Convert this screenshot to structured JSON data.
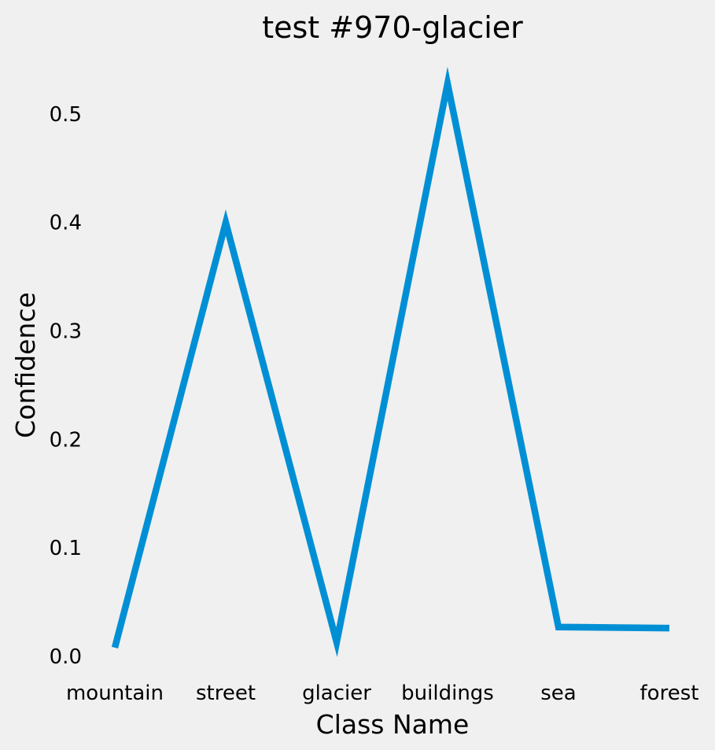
{
  "chart_data": {
    "type": "line",
    "title": "test #970-glacier",
    "xlabel": "Class Name",
    "ylabel": "Confidence",
    "categories": [
      "mountain",
      "street",
      "glacier",
      "buildings",
      "sea",
      "forest"
    ],
    "series": [
      {
        "values": [
          0.008,
          0.4,
          0.013,
          0.528,
          0.027,
          0.026
        ],
        "color": "#008fd5"
      }
    ],
    "ylim": [
      0.0,
      0.55
    ],
    "yticks": [
      {
        "value": 0.0,
        "label": "0.0"
      },
      {
        "value": 0.1,
        "label": "0.1"
      },
      {
        "value": 0.2,
        "label": "0.2"
      },
      {
        "value": 0.3,
        "label": "0.3"
      },
      {
        "value": 0.4,
        "label": "0.4"
      },
      {
        "value": 0.5,
        "label": "0.5"
      }
    ],
    "grid": false,
    "background": "#f0f0f0"
  }
}
